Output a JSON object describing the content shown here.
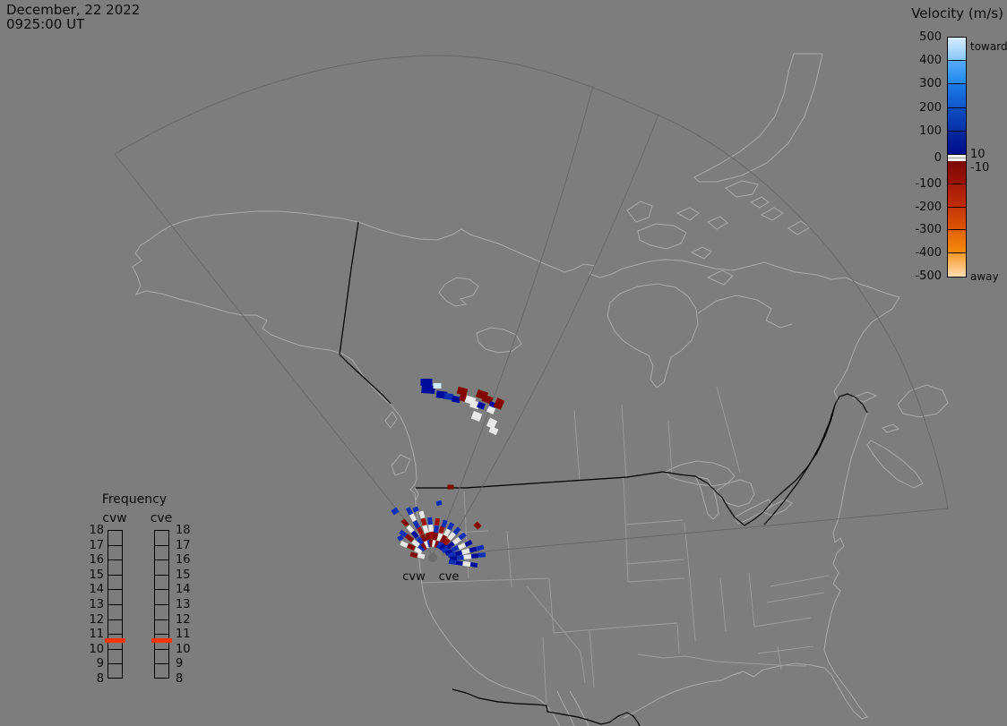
{
  "header": {
    "date_line": "December, 22 2022",
    "time_line": "0925:00 UT"
  },
  "velocity_colorbar": {
    "title": "Velocity (m/s)",
    "tick_labels": [
      "500",
      "400",
      "300",
      "200",
      "100",
      "0",
      "-100",
      "-200",
      "-300",
      "-400",
      "-500"
    ],
    "toward_label": "toward",
    "away_label": "away",
    "inner_threshold_labels": [
      "10",
      "-10"
    ],
    "toward_segments": [
      [
        "#d8eeff",
        "#86c5f8"
      ],
      [
        "#55aaf8",
        "#2188ee"
      ],
      [
        "#1c7ae8",
        "#0f58cc"
      ],
      [
        "#0d4cc0",
        "#0631a6"
      ],
      [
        "#06289c",
        "#000d8a"
      ]
    ],
    "away_segments": [
      [
        "#7c0a06",
        "#9c1205"
      ],
      [
        "#a61a06",
        "#bf2d06"
      ],
      [
        "#c63706",
        "#dc5404"
      ],
      [
        "#e26204",
        "#f68a0c"
      ],
      [
        "#f8982a",
        "#fdddb0"
      ]
    ],
    "zero_band_color": "#f2f2f2",
    "zero_band_line_color": "#999999"
  },
  "frequency_panel": {
    "title": "Frequency",
    "columns": [
      {
        "label": "cvw"
      },
      {
        "label": "cve"
      }
    ],
    "tick_labels": [
      "18",
      "17",
      "16",
      "15",
      "14",
      "13",
      "12",
      "11",
      "10",
      "9",
      "8"
    ],
    "marker_color": "#fb3400"
  },
  "map": {
    "radar_site_labels": [
      "cvw",
      "cve"
    ],
    "background_color": "#7d7d7d",
    "coastline_color": "#a9a9a9",
    "state_line_color": "#9c9c9c",
    "country_border_color": "#000000",
    "fov_outline_color": "#686868",
    "radar_dot_color": "#6d6d6d",
    "velocity_palette": {
      "N": "#000d9b",
      "B": "#0f2fb4",
      "L": "#cfe9ff",
      "D": "#820a02",
      "R": "#9b1103",
      "W": "#e9e9e9"
    },
    "cells": {
      "south": [
        [
          467,
          615,
          5,
          8,
          -65,
          "W"
        ],
        [
          459,
          611,
          5,
          8,
          -65,
          "D"
        ],
        [
          451,
          608,
          5,
          8,
          -65,
          "W"
        ],
        [
          470,
          621,
          5,
          8,
          -75,
          "W"
        ],
        [
          462,
          620,
          5,
          8,
          -75,
          "D"
        ],
        [
          471,
          612,
          5,
          8,
          -52,
          "B"
        ],
        [
          464,
          607,
          5,
          8,
          -52,
          "W"
        ],
        [
          457,
          601,
          5,
          9,
          -52,
          "D"
        ],
        [
          450,
          596,
          5,
          8,
          -52,
          "B"
        ],
        [
          474,
          610,
          5,
          8,
          -40,
          "D"
        ],
        [
          469,
          604,
          5,
          8,
          -40,
          "B"
        ],
        [
          463,
          597,
          5,
          9,
          -40,
          "N"
        ],
        [
          458,
          591,
          5,
          8,
          -40,
          "W"
        ],
        [
          452,
          584,
          5,
          8,
          -40,
          "D"
        ],
        [
          477,
          608,
          5,
          8,
          -28,
          "W"
        ],
        [
          473,
          601,
          5,
          8,
          -28,
          "D"
        ],
        [
          469,
          593,
          5,
          9,
          -28,
          "R"
        ],
        [
          465,
          586,
          5,
          8,
          -28,
          "B"
        ],
        [
          461,
          578,
          5,
          8,
          -28,
          "W"
        ],
        [
          457,
          571,
          5,
          8,
          -28,
          "B"
        ],
        [
          480,
          607,
          5,
          8,
          -16,
          "B"
        ],
        [
          478,
          599,
          5,
          8,
          -16,
          "D"
        ],
        [
          475,
          591,
          5,
          9,
          -16,
          "W"
        ],
        [
          473,
          583,
          5,
          8,
          -16,
          "R"
        ],
        [
          471,
          575,
          5,
          8,
          -16,
          "W"
        ],
        [
          482,
          607,
          5,
          8,
          -5,
          "D"
        ],
        [
          482,
          598,
          5,
          9,
          -5,
          "R"
        ],
        [
          481,
          590,
          5,
          8,
          -5,
          "W"
        ],
        [
          480,
          582,
          5,
          8,
          -5,
          "B"
        ],
        [
          485,
          607,
          5,
          8,
          6,
          "W"
        ],
        [
          486,
          599,
          5,
          9,
          6,
          "D"
        ],
        [
          487,
          591,
          5,
          8,
          6,
          "B"
        ],
        [
          488,
          583,
          5,
          8,
          6,
          "R"
        ],
        [
          488,
          608,
          5,
          8,
          17,
          "D"
        ],
        [
          491,
          600,
          5,
          9,
          17,
          "W"
        ],
        [
          493,
          592,
          5,
          8,
          17,
          "R"
        ],
        [
          496,
          585,
          5,
          8,
          17,
          "B"
        ],
        [
          491,
          609,
          5,
          8,
          28,
          "B"
        ],
        [
          495,
          602,
          5,
          9,
          28,
          "D"
        ],
        [
          499,
          595,
          5,
          8,
          28,
          "W"
        ],
        [
          503,
          588,
          5,
          8,
          28,
          "B"
        ],
        [
          494,
          611,
          5,
          8,
          40,
          "N"
        ],
        [
          499,
          605,
          5,
          8,
          40,
          "R"
        ],
        [
          504,
          599,
          5,
          9,
          40,
          "W"
        ],
        [
          510,
          593,
          5,
          8,
          40,
          "B"
        ],
        [
          497,
          614,
          5,
          8,
          52,
          "B"
        ],
        [
          503,
          609,
          5,
          8,
          52,
          "N"
        ],
        [
          510,
          604,
          5,
          9,
          52,
          "W"
        ],
        [
          516,
          599,
          5,
          8,
          52,
          "B"
        ],
        [
          501,
          617,
          5,
          8,
          64,
          "N"
        ],
        [
          508,
          613,
          5,
          8,
          64,
          "B"
        ],
        [
          516,
          610,
          5,
          9,
          64,
          "W"
        ],
        [
          523,
          607,
          5,
          8,
          64,
          "N"
        ],
        [
          504,
          620,
          5,
          8,
          75,
          "B"
        ],
        [
          512,
          618,
          5,
          8,
          75,
          "N"
        ],
        [
          520,
          616,
          5,
          9,
          75,
          "W"
        ],
        [
          528,
          614,
          5,
          8,
          75,
          "N"
        ],
        [
          536,
          612,
          5,
          8,
          75,
          "B"
        ],
        [
          506,
          624,
          5,
          8,
          86,
          "N"
        ],
        [
          514,
          623,
          5,
          8,
          86,
          "B"
        ],
        [
          522,
          622,
          5,
          9,
          86,
          "W"
        ],
        [
          530,
          621,
          5,
          8,
          86,
          "N"
        ],
        [
          538,
          620,
          5,
          8,
          86,
          "B"
        ],
        [
          505,
          628,
          5,
          8,
          98,
          "B"
        ],
        [
          513,
          629,
          5,
          8,
          98,
          "N"
        ],
        [
          521,
          630,
          5,
          9,
          98,
          "W"
        ],
        [
          529,
          631,
          5,
          8,
          98,
          "N"
        ]
      ],
      "north": [
        [
          476,
          427,
          13,
          8,
          0,
          "N"
        ],
        [
          478,
          435,
          15,
          9,
          4,
          "N"
        ],
        [
          488,
          431,
          9,
          6,
          0,
          "L"
        ],
        [
          493,
          441,
          12,
          8,
          8,
          "N"
        ],
        [
          501,
          443,
          10,
          7,
          8,
          "B"
        ],
        [
          509,
          446,
          9,
          7,
          10,
          "N"
        ],
        [
          516,
          437,
          11,
          8,
          14,
          "D"
        ],
        [
          518,
          445,
          10,
          7,
          14,
          "D"
        ],
        [
          525,
          447,
          11,
          8,
          18,
          "W"
        ],
        [
          530,
          452,
          10,
          8,
          18,
          "W"
        ],
        [
          538,
          441,
          12,
          9,
          20,
          "D"
        ],
        [
          544,
          446,
          11,
          8,
          22,
          "D"
        ],
        [
          537,
          453,
          8,
          7,
          20,
          "N"
        ],
        [
          549,
          454,
          7,
          10,
          24,
          "N"
        ],
        [
          548,
          458,
          8,
          7,
          24,
          "W"
        ],
        [
          557,
          451,
          9,
          11,
          25,
          "D"
        ],
        [
          532,
          465,
          10,
          9,
          20,
          "W"
        ],
        [
          549,
          473,
          9,
          10,
          25,
          "W"
        ],
        [
          551,
          481,
          9,
          7,
          25,
          "W"
        ]
      ],
      "outliers": [
        [
          503,
          544,
          7,
          5,
          0,
          "D"
        ],
        [
          533,
          587,
          7,
          6,
          45,
          "D"
        ],
        [
          490,
          562,
          6,
          5,
          -15,
          "B"
        ],
        [
          464,
          569,
          6,
          5,
          -25,
          "B"
        ],
        [
          441,
          571,
          7,
          6,
          -35,
          "B"
        ],
        [
          447,
          601,
          6,
          5,
          -30,
          "B"
        ]
      ]
    }
  }
}
